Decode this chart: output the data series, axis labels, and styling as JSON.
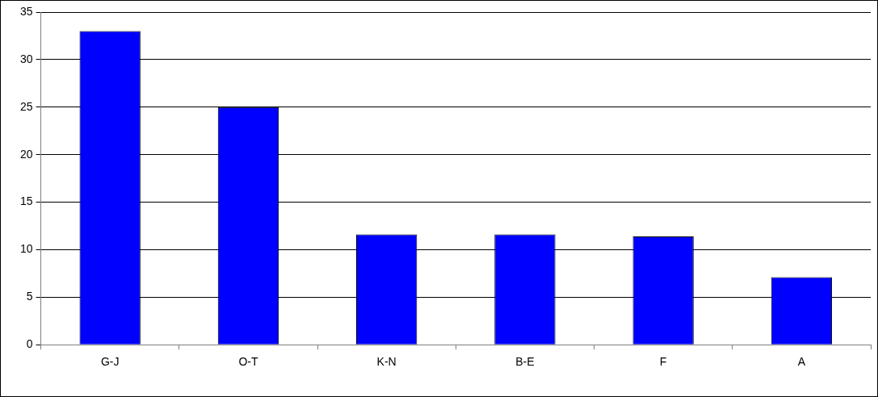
{
  "chart_data": {
    "type": "bar",
    "categories": [
      "G-J",
      "O-T",
      "K-N",
      "B-E",
      "F",
      "A"
    ],
    "values": [
      33,
      25,
      11.6,
      11.6,
      11.4,
      7.1
    ],
    "color": "#0000ff",
    "ylim": [
      0,
      35
    ],
    "yticks": [
      0,
      5,
      10,
      15,
      20,
      25,
      30,
      35
    ],
    "grid": "y",
    "legend": false
  }
}
